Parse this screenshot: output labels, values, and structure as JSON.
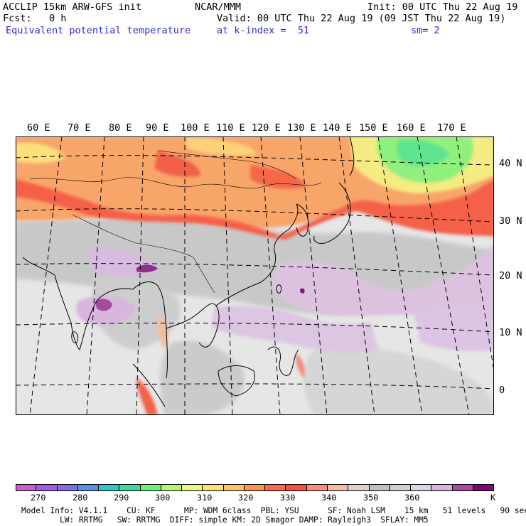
{
  "header": {
    "model_line": "ACCLIP 15km ARW-GFS init",
    "org": "NCAR/MMM",
    "init": "Init: 00 UTC Thu 22 Aug 19",
    "fcst": "Fcst:   0 h",
    "valid": "Valid: 00 UTC Thu 22 Aug 19 (09 JST Thu 22 Aug 19)",
    "field": "Equivalent potential temperature",
    "level": "at k-index =  51",
    "smooth": "sm= 2"
  },
  "map": {
    "lon_labels": [
      "60 E",
      "70 E",
      "80 E",
      "90 E",
      "100 E",
      "110 E",
      "120 E",
      "130 E",
      "140 E",
      "150 E",
      "160 E",
      "170 E"
    ],
    "lat_labels": [
      "40 N",
      "30 N",
      "20 N",
      "10 N",
      "0"
    ]
  },
  "colorbar": {
    "colors": [
      "#c95fcf",
      "#a35be0",
      "#7f6fe2",
      "#5e8fe6",
      "#39c2c6",
      "#3fd89a",
      "#6fee7c",
      "#b9f47a",
      "#eef584",
      "#fde27c",
      "#fdc06e",
      "#fb9456",
      "#f86a4c",
      "#f54f45",
      "#f78f7e",
      "#f3bca4",
      "#dcd2cc",
      "#c0c0c0",
      "#cfcfcf",
      "#ddd5e5",
      "#d9b3dc",
      "#a94ba2",
      "#7c0a76"
    ],
    "tick_labels": [
      "270",
      "280",
      "290",
      "300",
      "310",
      "320",
      "330",
      "340",
      "350",
      "360"
    ],
    "unit": "K"
  },
  "footer": {
    "line1": "Model Info: V4.1.1    CU: KF      MP: WDM 6class  PBL: YSU      SF: Noah LSM    15 km   51 levels   90 sec",
    "line2": "LW: RRTMG   SW: RRTMG  DIFF: simple KM: 2D Smagor DAMP: Rayleigh3  SFLAY: MM5"
  }
}
